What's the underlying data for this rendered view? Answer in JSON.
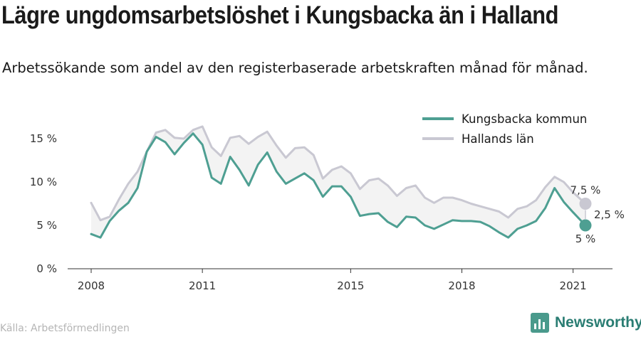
{
  "title": "Lägre ungdomsarbetslöshet i Kungsbacka än i Halland",
  "subtitle": "Arbetssökande som andel av den registerbaserade arbetskraften månad för månad.",
  "source": "Källa: Arbetsförmedlingen",
  "brand": {
    "name": "Newsworthy",
    "icon": "bar-chart-icon",
    "color": "#2a7d73"
  },
  "chart_data": {
    "type": "line",
    "title": "",
    "xlabel": "",
    "ylabel": "",
    "x_ticks": [
      "2008",
      "2011",
      "2015",
      "2018",
      "2021"
    ],
    "y_ticks": [
      "0 %",
      "5 %",
      "10 %",
      "15 %"
    ],
    "ylim": [
      0,
      17
    ],
    "xlim": [
      "2008-01",
      "2021-05"
    ],
    "grid": false,
    "legend_position": "top-right",
    "fill_between_series": true,
    "series": [
      {
        "name": "Kungsbacka kommun",
        "color": "#4e9f92",
        "end_label": "5 %",
        "points": [
          [
            "2008-01",
            4.0
          ],
          [
            "2008-04",
            3.6
          ],
          [
            "2008-07",
            5.5
          ],
          [
            "2008-10",
            6.7
          ],
          [
            "2009-01",
            7.6
          ],
          [
            "2009-04",
            9.3
          ],
          [
            "2009-07",
            13.5
          ],
          [
            "2009-10",
            15.2
          ],
          [
            "2010-01",
            14.6
          ],
          [
            "2010-04",
            13.2
          ],
          [
            "2010-07",
            14.5
          ],
          [
            "2010-10",
            15.6
          ],
          [
            "2011-01",
            14.3
          ],
          [
            "2011-04",
            10.5
          ],
          [
            "2011-07",
            9.8
          ],
          [
            "2011-10",
            12.9
          ],
          [
            "2012-01",
            11.4
          ],
          [
            "2012-04",
            9.6
          ],
          [
            "2012-07",
            12.0
          ],
          [
            "2012-10",
            13.4
          ],
          [
            "2013-01",
            11.2
          ],
          [
            "2013-04",
            9.8
          ],
          [
            "2013-07",
            10.4
          ],
          [
            "2013-10",
            11.0
          ],
          [
            "2014-01",
            10.2
          ],
          [
            "2014-04",
            8.3
          ],
          [
            "2014-07",
            9.5
          ],
          [
            "2014-10",
            9.5
          ],
          [
            "2015-01",
            8.3
          ],
          [
            "2015-04",
            6.1
          ],
          [
            "2015-07",
            6.3
          ],
          [
            "2015-10",
            6.4
          ],
          [
            "2016-01",
            5.4
          ],
          [
            "2016-04",
            4.8
          ],
          [
            "2016-07",
            6.0
          ],
          [
            "2016-10",
            5.9
          ],
          [
            "2017-01",
            5.0
          ],
          [
            "2017-04",
            4.6
          ],
          [
            "2017-07",
            5.1
          ],
          [
            "2017-10",
            5.6
          ],
          [
            "2018-01",
            5.5
          ],
          [
            "2018-04",
            5.5
          ],
          [
            "2018-07",
            5.4
          ],
          [
            "2018-10",
            4.9
          ],
          [
            "2019-01",
            4.2
          ],
          [
            "2019-04",
            3.6
          ],
          [
            "2019-07",
            4.6
          ],
          [
            "2019-10",
            5.0
          ],
          [
            "2020-01",
            5.5
          ],
          [
            "2020-04",
            7.0
          ],
          [
            "2020-07",
            9.3
          ],
          [
            "2020-10",
            7.7
          ],
          [
            "2021-01",
            6.5
          ],
          [
            "2021-05",
            5.0
          ]
        ]
      },
      {
        "name": "Hallands län",
        "color": "#c9c8d2",
        "end_label": "7,5 %",
        "points": [
          [
            "2008-01",
            7.6
          ],
          [
            "2008-04",
            5.6
          ],
          [
            "2008-07",
            6.0
          ],
          [
            "2008-10",
            8.0
          ],
          [
            "2009-01",
            9.8
          ],
          [
            "2009-04",
            11.2
          ],
          [
            "2009-07",
            13.5
          ],
          [
            "2009-10",
            15.7
          ],
          [
            "2010-01",
            16.0
          ],
          [
            "2010-04",
            15.1
          ],
          [
            "2010-07",
            15.0
          ],
          [
            "2010-10",
            16.0
          ],
          [
            "2011-01",
            16.4
          ],
          [
            "2011-04",
            14.0
          ],
          [
            "2011-07",
            13.0
          ],
          [
            "2011-10",
            15.1
          ],
          [
            "2012-01",
            15.3
          ],
          [
            "2012-04",
            14.4
          ],
          [
            "2012-07",
            15.2
          ],
          [
            "2012-10",
            15.8
          ],
          [
            "2013-01",
            14.2
          ],
          [
            "2013-04",
            12.8
          ],
          [
            "2013-07",
            13.9
          ],
          [
            "2013-10",
            14.0
          ],
          [
            "2014-01",
            13.1
          ],
          [
            "2014-04",
            10.4
          ],
          [
            "2014-07",
            11.4
          ],
          [
            "2014-10",
            11.8
          ],
          [
            "2015-01",
            11.0
          ],
          [
            "2015-04",
            9.2
          ],
          [
            "2015-07",
            10.2
          ],
          [
            "2015-10",
            10.4
          ],
          [
            "2016-01",
            9.6
          ],
          [
            "2016-04",
            8.4
          ],
          [
            "2016-07",
            9.3
          ],
          [
            "2016-10",
            9.6
          ],
          [
            "2017-01",
            8.2
          ],
          [
            "2017-04",
            7.6
          ],
          [
            "2017-07",
            8.2
          ],
          [
            "2017-10",
            8.2
          ],
          [
            "2018-01",
            7.9
          ],
          [
            "2018-04",
            7.5
          ],
          [
            "2018-07",
            7.2
          ],
          [
            "2018-10",
            6.9
          ],
          [
            "2019-01",
            6.6
          ],
          [
            "2019-04",
            5.9
          ],
          [
            "2019-07",
            6.9
          ],
          [
            "2019-10",
            7.2
          ],
          [
            "2020-01",
            7.9
          ],
          [
            "2020-04",
            9.4
          ],
          [
            "2020-07",
            10.6
          ],
          [
            "2020-10",
            10.0
          ],
          [
            "2021-01",
            8.8
          ],
          [
            "2021-05",
            7.5
          ]
        ]
      }
    ],
    "annotations": [
      {
        "text": "2,5 %",
        "note_for": "difference"
      }
    ]
  }
}
